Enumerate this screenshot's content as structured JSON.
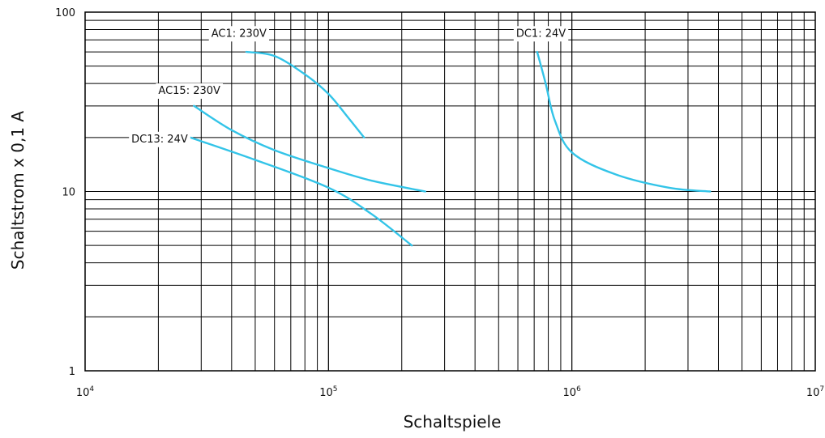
{
  "chart_data": {
    "type": "line",
    "xlabel": "Schaltspiele",
    "ylabel": "Schaltstrom x 0,1 A",
    "xscale": "log",
    "yscale": "log",
    "xlim": [
      10000,
      10000000
    ],
    "ylim": [
      1,
      100
    ],
    "grid": true,
    "x_ticks": [
      {
        "value": 10000,
        "base": "10",
        "exp": "4"
      },
      {
        "value": 100000,
        "base": "10",
        "exp": "5"
      },
      {
        "value": 1000000,
        "base": "10",
        "exp": "6"
      },
      {
        "value": 10000000,
        "base": "10",
        "exp": "7"
      }
    ],
    "y_ticks": [
      {
        "value": 1,
        "label": "1"
      },
      {
        "value": 10,
        "label": "10"
      },
      {
        "value": 100,
        "label": "100"
      }
    ],
    "line_color": "#33c4e8",
    "series": [
      {
        "name": "AC1: 230V",
        "label_at": {
          "x": 33000,
          "y": 73
        },
        "points": [
          [
            46000,
            60
          ],
          [
            60000,
            57
          ],
          [
            80000,
            45
          ],
          [
            100000,
            35
          ],
          [
            120000,
            26
          ],
          [
            140000,
            20
          ]
        ]
      },
      {
        "name": "AC15: 230V",
        "label_at": {
          "x": 20000,
          "y": 35
        },
        "points": [
          [
            28000,
            30
          ],
          [
            40000,
            22
          ],
          [
            60000,
            17
          ],
          [
            100000,
            13.5
          ],
          [
            150000,
            11.5
          ],
          [
            250000,
            10
          ]
        ]
      },
      {
        "name": "DC13: 24V",
        "label_at": {
          "x": 15500,
          "y": 18.8
        },
        "points": [
          [
            27000,
            20
          ],
          [
            50000,
            15
          ],
          [
            100000,
            10.5
          ],
          [
            150000,
            7.5
          ],
          [
            220000,
            5
          ]
        ]
      },
      {
        "name": "DC1: 24V",
        "label_at": {
          "x": 590000,
          "y": 73
        },
        "points": [
          [
            720000,
            60
          ],
          [
            780000,
            40
          ],
          [
            850000,
            25
          ],
          [
            1000000,
            16.5
          ],
          [
            1500000,
            12.5
          ],
          [
            2500000,
            10.5
          ],
          [
            3700000,
            10
          ]
        ]
      }
    ]
  }
}
